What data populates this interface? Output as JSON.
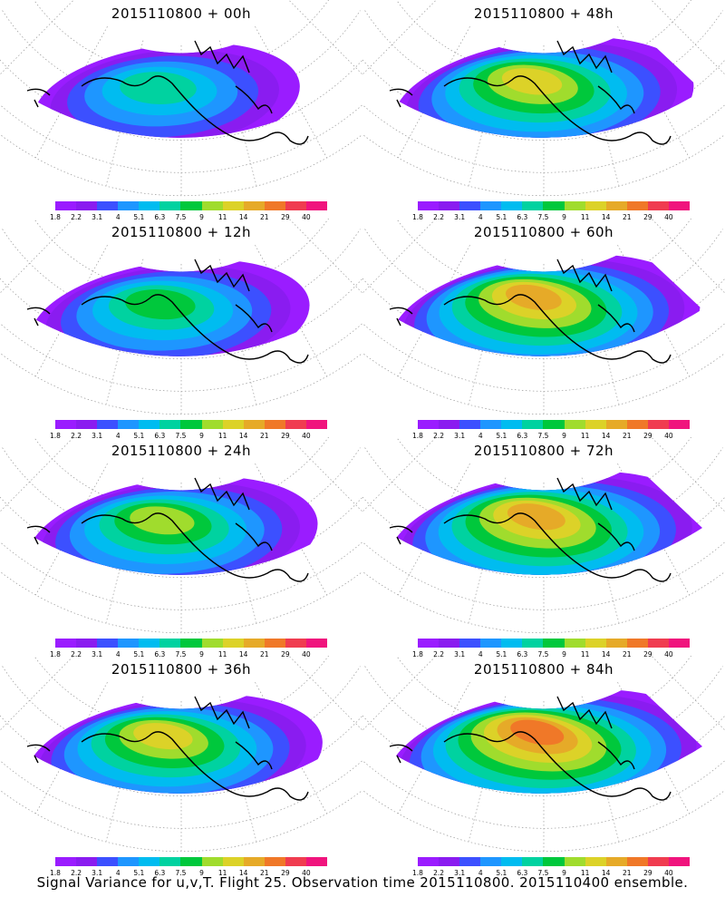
{
  "panels": [
    {
      "title": "2015110800 + 00h",
      "intensity": 0.3
    },
    {
      "title": "2015110800 + 48h",
      "intensity": 0.62
    },
    {
      "title": "2015110800 + 12h",
      "intensity": 0.42
    },
    {
      "title": "2015110800 + 60h",
      "intensity": 0.7
    },
    {
      "title": "2015110800 + 24h",
      "intensity": 0.52
    },
    {
      "title": "2015110800 + 72h",
      "intensity": 0.8
    },
    {
      "title": "2015110800 + 36h",
      "intensity": 0.58
    },
    {
      "title": "2015110800 + 84h",
      "intensity": 0.84
    }
  ],
  "colorbar": {
    "colors": [
      "#9a1cff",
      "#8a1cf0",
      "#3c50ff",
      "#1e96ff",
      "#00bcf0",
      "#00d2a0",
      "#00c83c",
      "#a0dc2d",
      "#dcd228",
      "#e6aa28",
      "#f07828",
      "#f03c50",
      "#f0147d"
    ],
    "labels": [
      "1.8",
      "2.2",
      "3.1",
      "4",
      "5.1",
      "6.3",
      "7.5",
      "9",
      "11",
      "14",
      "21",
      "29",
      "40"
    ]
  },
  "caption": "Signal Variance for u,v,T. Flight 25. Observation time 2015110800. 2015110400 ensemble."
}
